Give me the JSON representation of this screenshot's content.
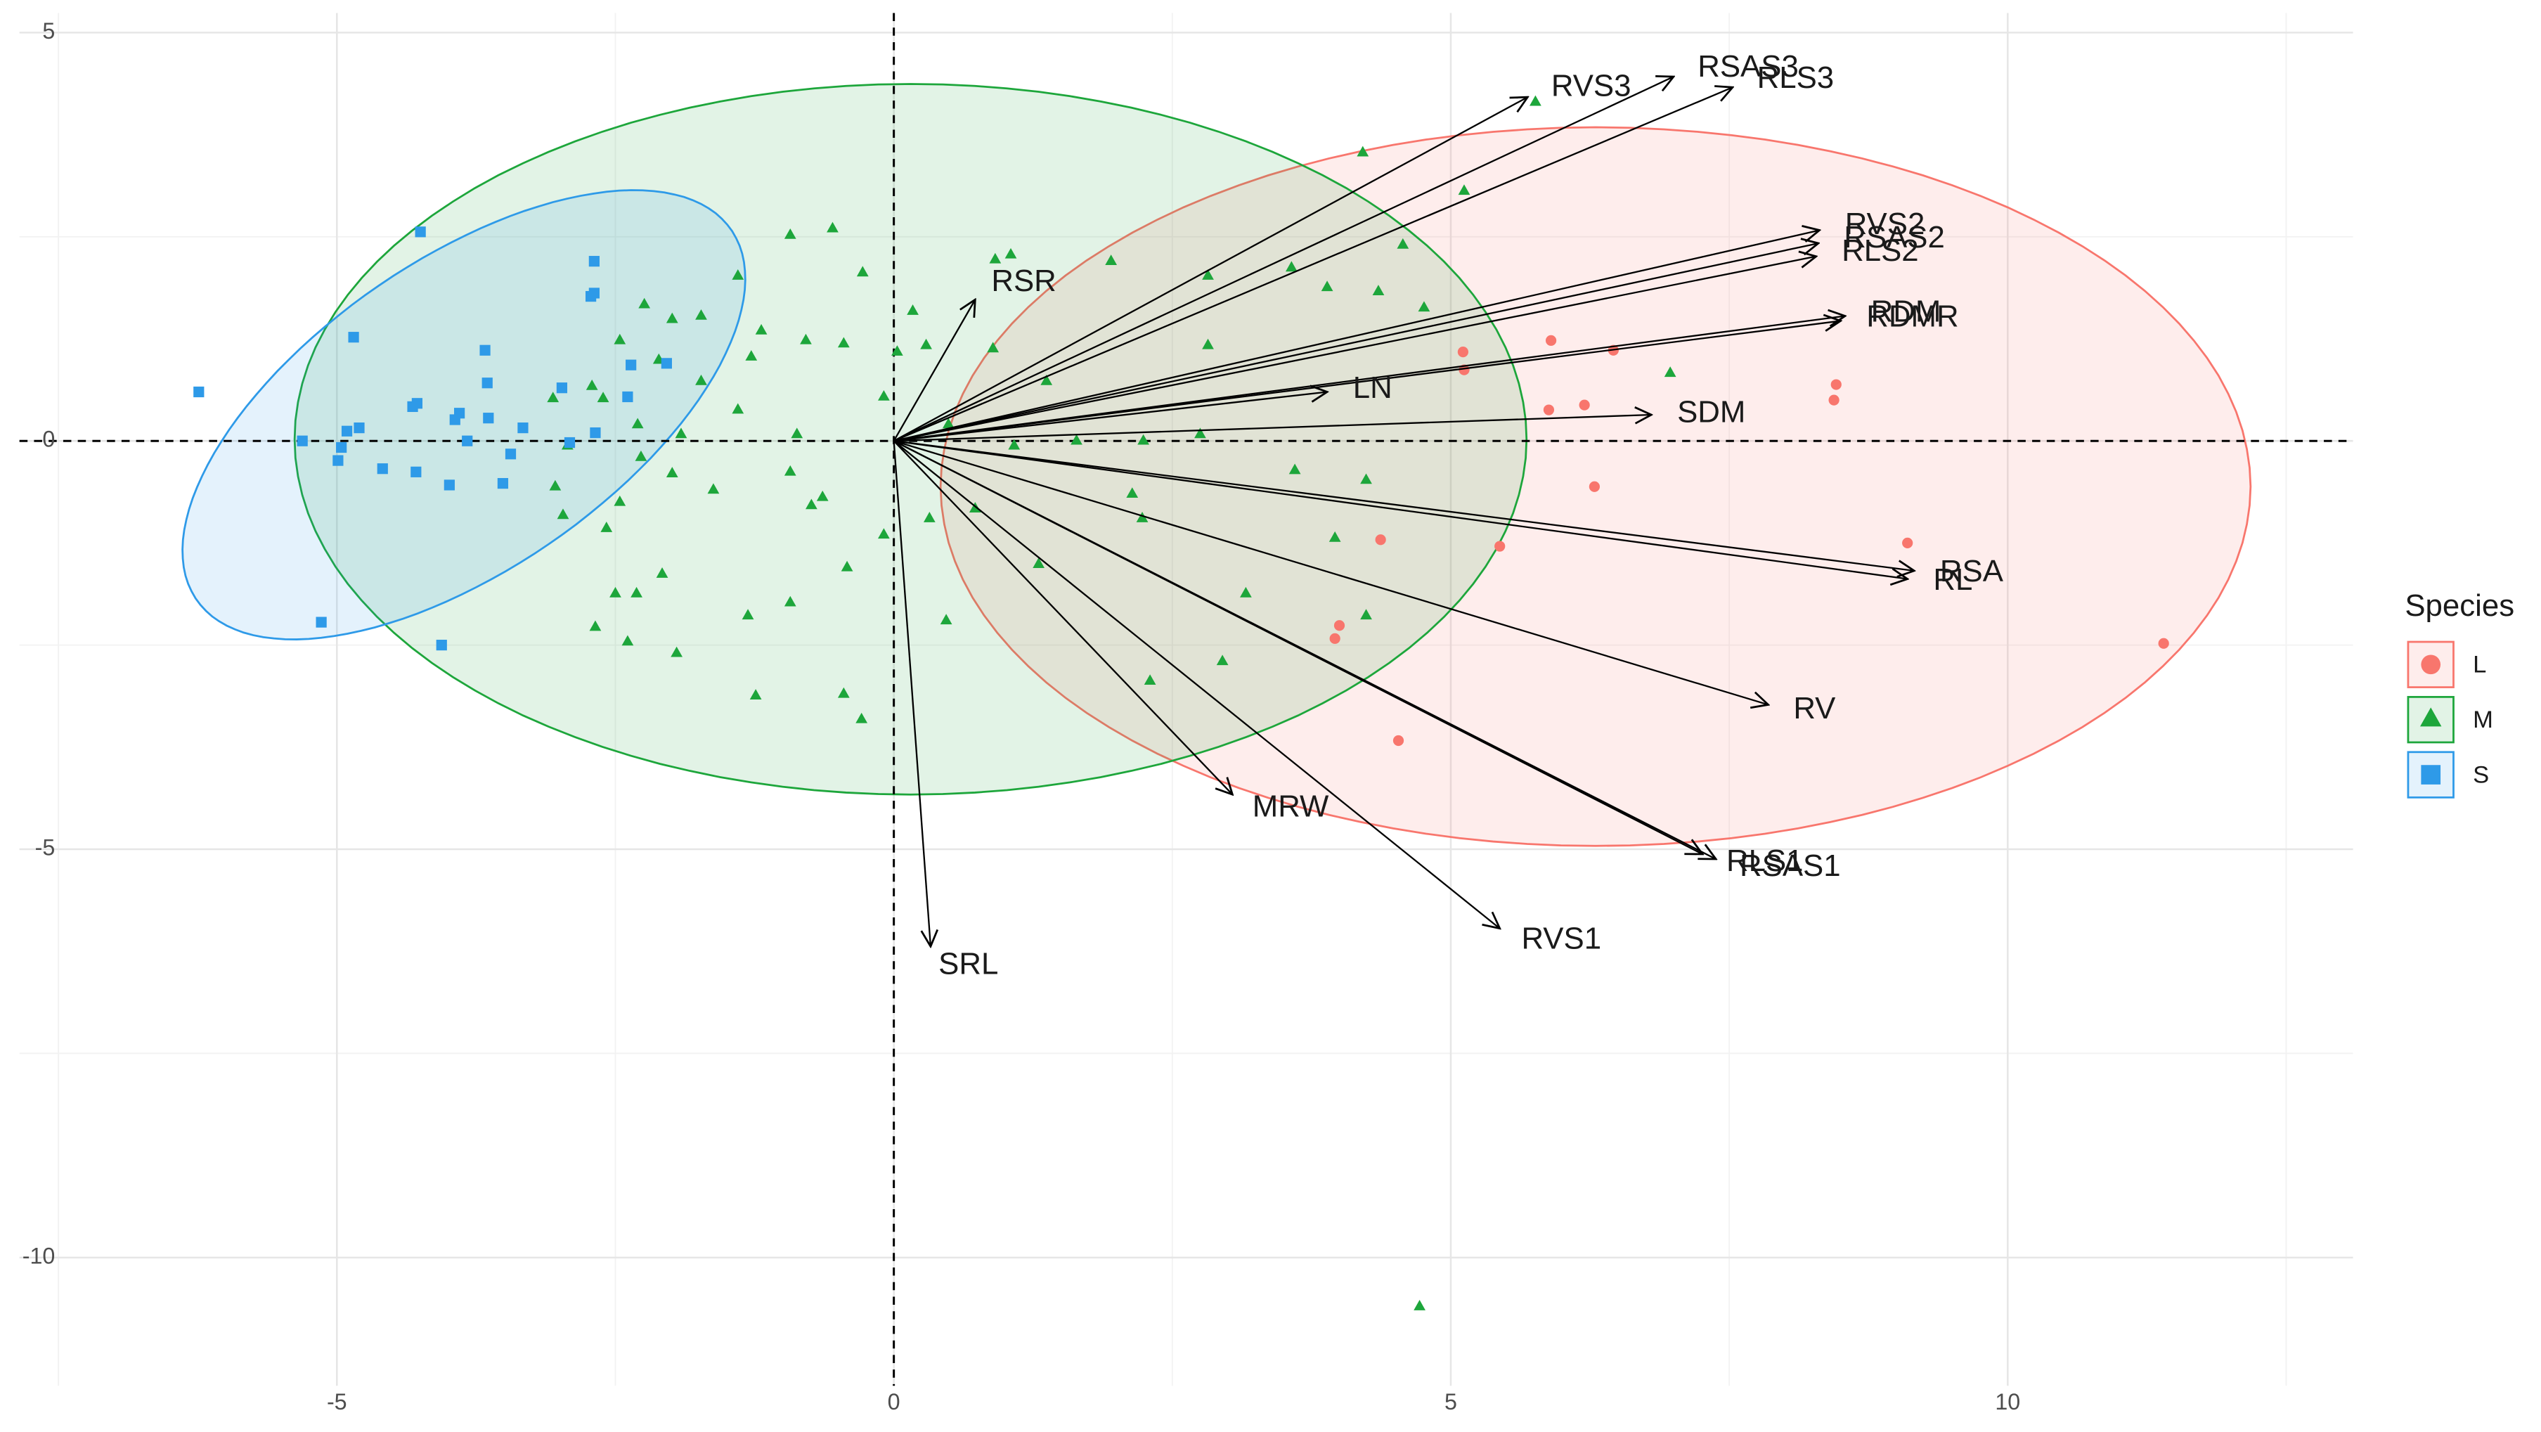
{
  "chart_data": {
    "type": "biplot",
    "legend_title": "Species",
    "legend_position": "right",
    "grid": true,
    "xlim": [
      -7.85,
      13.1
    ],
    "ylim": [
      -11.57,
      5.24
    ],
    "xticks": [
      -5,
      0,
      5,
      10
    ],
    "yticks": [
      5,
      0,
      -5,
      -10
    ],
    "hline": 0,
    "vline": 0,
    "series": [
      {
        "name": "L",
        "color": "#F8766D",
        "shape": "circle",
        "ellipse": {
          "center": [
            6.3,
            -0.56
          ],
          "radii": [
            5.88,
            4.4
          ],
          "angle": 0
        },
        "x": [
          8.46,
          8.44,
          5.9,
          6.46,
          5.11,
          5.12,
          5.88,
          6.2,
          6.29,
          9.1,
          5.44,
          4.37,
          4.0,
          3.96,
          4.53,
          11.4
        ],
        "values": [
          0.69,
          0.5,
          1.23,
          1.11,
          1.09,
          0.87,
          0.38,
          0.44,
          -0.56,
          -1.25,
          -1.29,
          -1.21,
          -2.26,
          -2.42,
          -3.67,
          -2.48
        ]
      },
      {
        "name": "M",
        "color": "#1DA63B",
        "shape": "triangle",
        "ellipse": {
          "center": [
            0.15,
            0.02
          ],
          "radii": [
            5.53,
            4.35
          ],
          "angle": 0
        },
        "x": [
          -1.4,
          -0.93,
          -0.55,
          -0.28,
          -0.79,
          -0.45,
          -1.19,
          -1.28,
          -2.24,
          -1.99,
          -1.73,
          -2.46,
          -2.11,
          -1.73,
          -1.4,
          -2.71,
          -2.61,
          -3.06,
          -2.3,
          -1.91,
          -2.93,
          -2.27,
          -1.99,
          -3.04,
          -2.46,
          -2.97,
          -2.58,
          -2.08,
          -2.5,
          -2.31,
          -2.68,
          -2.39,
          -1.95,
          -1.31,
          -0.93,
          -1.24,
          -0.45,
          -0.29,
          -0.42,
          -0.09,
          -0.64,
          -0.74,
          -0.93,
          -1.62,
          -0.87,
          -0.09,
          0.03,
          0.29,
          0.17,
          0.91,
          1.05,
          1.95,
          2.82,
          3.57,
          4.21,
          5.12,
          5.76,
          4.57,
          4.76,
          3.89,
          4.35,
          2.82,
          1.37,
          0.89,
          0.49,
          1.08,
          1.64,
          2.24,
          2.75,
          6.97,
          3.6,
          4.24,
          2.14,
          2.23,
          0.32,
          0.73,
          3.96,
          3.16,
          4.24,
          1.3,
          0.47,
          2.3,
          2.95,
          4.72
        ],
        "values": [
          2.02,
          2.52,
          2.6,
          2.06,
          1.23,
          1.19,
          1.35,
          1.03,
          1.67,
          1.49,
          1.53,
          1.23,
          0.99,
          0.73,
          0.38,
          0.67,
          0.52,
          0.52,
          0.2,
          0.08,
          -0.06,
          -0.2,
          -0.4,
          -0.56,
          -0.75,
          -0.91,
          -1.07,
          -1.63,
          -1.87,
          -1.87,
          -2.28,
          -2.46,
          -2.6,
          -2.14,
          -1.98,
          -3.12,
          -3.1,
          -3.41,
          -1.55,
          -1.15,
          -0.69,
          -0.79,
          -0.38,
          -0.6,
          0.08,
          0.54,
          1.09,
          1.17,
          1.59,
          2.22,
          2.28,
          2.2,
          2.02,
          2.12,
          3.53,
          3.06,
          4.15,
          2.4,
          1.63,
          1.88,
          1.83,
          1.17,
          0.73,
          1.13,
          0.2,
          -0.06,
          0,
          0,
          0.08,
          0.83,
          -0.36,
          -0.48,
          -0.65,
          -0.95,
          -0.95,
          -0.83,
          -1.19,
          -1.87,
          -2.14,
          -1.51,
          -2.2,
          -2.94,
          -2.7,
          -10.6
        ]
      },
      {
        "name": "S",
        "color": "#2E9AE8",
        "shape": "square",
        "ellipse": {
          "center": [
            -3.86,
            0.32
          ],
          "radii": [
            3.35,
            1.65
          ],
          "angle": 49
        },
        "x": [
          -6.24,
          -5.31,
          -4.25,
          -4.85,
          -4.96,
          -4.91,
          -4.8,
          -4.99,
          -4.59,
          -4.29,
          -3.99,
          -3.83,
          -3.9,
          -3.94,
          -3.64,
          -3.65,
          -3.67,
          -3.33,
          -3.44,
          -3.51,
          -2.98,
          -2.91,
          -2.69,
          -2.69,
          -2.72,
          -2.68,
          -2.36,
          -2.39,
          -2.04,
          -4.06,
          -5.14,
          -4.32,
          -4.28
        ],
        "values": [
          0.6,
          0,
          2.56,
          1.27,
          -0.08,
          0.12,
          0.16,
          -0.24,
          -0.34,
          -0.38,
          -0.54,
          0,
          0.34,
          0.26,
          0.28,
          0.71,
          1.11,
          0.16,
          -0.16,
          -0.52,
          0.65,
          -0.02,
          2.2,
          1.81,
          1.77,
          0.1,
          0.93,
          0.54,
          0.95,
          -2.5,
          -2.22,
          0.42,
          0.46
        ]
      }
    ],
    "arrows": [
      {
        "name": "RSAS3",
        "x": 7.0,
        "y": 4.46
      },
      {
        "name": "RLS3",
        "x": 7.53,
        "y": 4.33
      },
      {
        "name": "RVS3",
        "x": 5.69,
        "y": 4.21
      },
      {
        "name": "RVS2",
        "x": 8.31,
        "y": 2.58
      },
      {
        "name": "RLS2",
        "x": 8.28,
        "y": 2.26
      },
      {
        "name": "RSAS2",
        "x": 8.3,
        "y": 2.42
      },
      {
        "name": "RDM",
        "x": 8.54,
        "y": 1.53
      },
      {
        "name": "RDMR",
        "x": 8.5,
        "y": 1.47
      },
      {
        "name": "LN",
        "x": 3.89,
        "y": 0.6
      },
      {
        "name": "SDM",
        "x": 6.8,
        "y": 0.32
      },
      {
        "name": "RSR",
        "x": 0.73,
        "y": 1.73
      },
      {
        "name": "RSA",
        "x": 9.16,
        "y": -1.59
      },
      {
        "name": "RL",
        "x": 9.1,
        "y": -1.69
      },
      {
        "name": "RV",
        "x": 7.85,
        "y": -3.23
      },
      {
        "name": "RLS1",
        "x": 7.26,
        "y": -5.06
      },
      {
        "name": "RSAS1",
        "x": 7.38,
        "y": -5.12
      },
      {
        "name": "MRW",
        "x": 3.04,
        "y": -4.33
      },
      {
        "name": "RVS1",
        "x": 5.44,
        "y": -5.97
      },
      {
        "name": "SRL",
        "x": 0.33,
        "y": -6.19
      }
    ]
  }
}
